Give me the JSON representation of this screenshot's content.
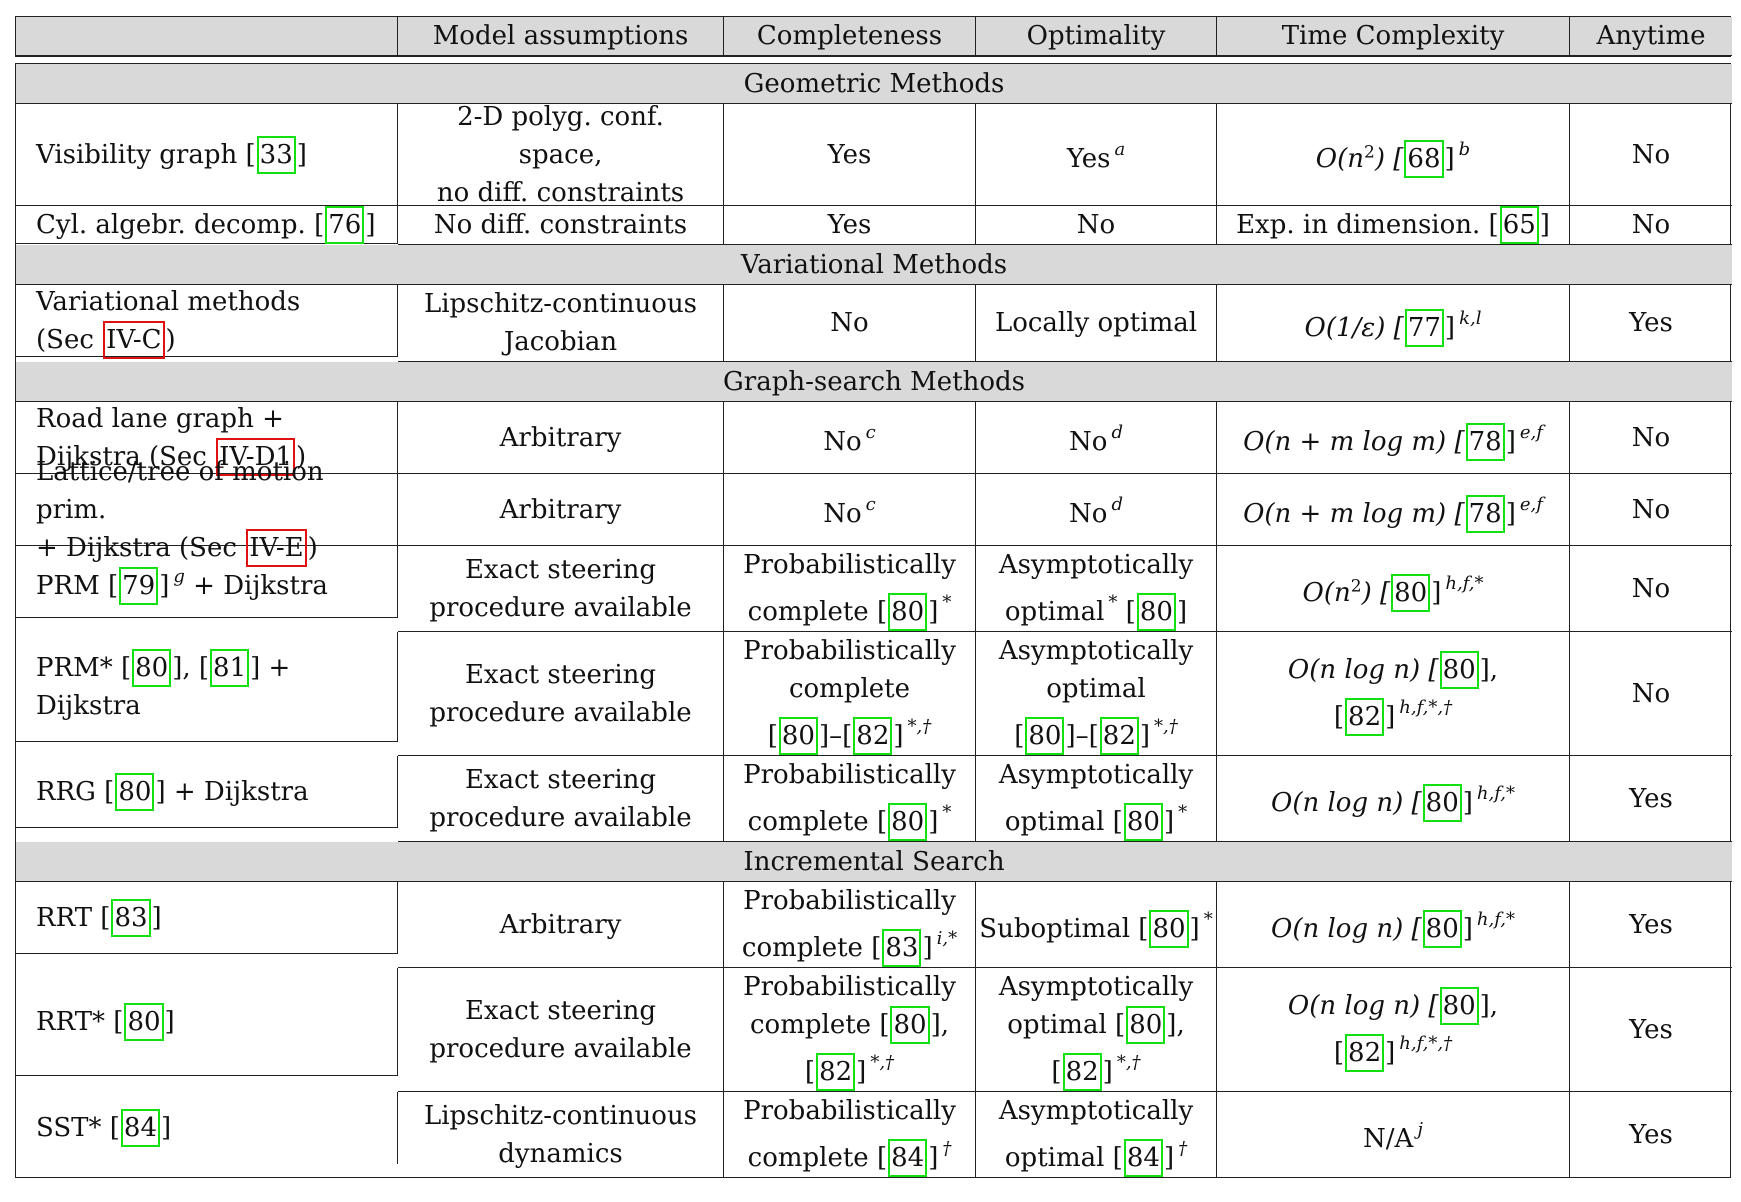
{
  "headers": [
    "",
    "Model assumptions",
    "Completeness",
    "Optimality",
    "Time Complexity",
    "Anytime"
  ],
  "sections": {
    "geometric": "Geometric Methods",
    "variational": "Variational Methods",
    "graph": "Graph-search Methods",
    "incremental": "Incremental Search"
  },
  "rows": {
    "vis": {
      "method": "Visibility graph [",
      "ref1": "33",
      "method_end": "]",
      "model": "2-D polyg. conf.\nspace,\nno diff. constraints",
      "completeness": "Yes",
      "optimality": "Yes",
      "optimality_sup": "a",
      "time_pre": "O(n",
      "time_exp": "2",
      "time_post": ") [",
      "time_ref": "68",
      "time_end": "]",
      "time_sup": "b",
      "anytime": "No"
    },
    "cyl": {
      "method": "Cyl. algebr. decomp. [",
      "ref1": "76",
      "method_end": "]",
      "model": "No diff. constraints",
      "completeness": "Yes",
      "optimality": "No",
      "time_pre": "Exp. in dimension. [",
      "time_ref": "65",
      "time_end": "]",
      "anytime": "No"
    },
    "var": {
      "method": "Variational methods",
      "method2": "(Sec ",
      "sec_ref": "IV-C",
      "method_end": ")",
      "model": "Lipschitz-continuous\nJacobian",
      "completeness": "No",
      "optimality": "Locally optimal",
      "time_pre": "O(1/ε) [",
      "time_ref": "77",
      "time_end": "]",
      "time_sup": "k,l",
      "anytime": "Yes"
    },
    "road": {
      "method": "Road lane graph +",
      "method2": "Dijkstra (Sec ",
      "sec_ref": "IV-D1",
      "method_end": ")",
      "model": "Arbitrary",
      "completeness": "No",
      "completeness_sup": "c",
      "optimality": "No",
      "optimality_sup": "d",
      "time_pre": "O(n + m log m) [",
      "time_ref": "78",
      "time_end": "]",
      "time_sup": "e,f",
      "anytime": "No"
    },
    "lattice": {
      "method": "Lattice/tree of motion prim.",
      "method2": "+ Dijkstra (Sec ",
      "sec_ref": "IV-E",
      "method_end": ")",
      "model": "Arbitrary",
      "completeness": "No",
      "completeness_sup": "c",
      "optimality": "No",
      "optimality_sup": "d",
      "time_pre": "O(n + m log m) [",
      "time_ref": "78",
      "time_end": "]",
      "time_sup": "e,f",
      "anytime": "No"
    },
    "prm": {
      "method": "PRM [",
      "ref1": "79",
      "method_mid": "]",
      "method_sup": "g",
      "method_end": " + Dijkstra",
      "model": "Exact steering\nprocedure available",
      "comp_line1": "Probabilistically",
      "comp_line2": "complete [",
      "comp_ref": "80",
      "comp_end": "]",
      "comp_sup": "*",
      "opt_line1": "Asymptotically",
      "opt_line2": "optimal",
      "opt_sup": "*",
      "opt_pre": " [",
      "opt_ref": "80",
      "opt_end": "]",
      "time_pre": "O(n",
      "time_exp": "2",
      "time_post": ") [",
      "time_ref": "80",
      "time_end": "]",
      "time_sup": "h,f,*",
      "anytime": "No"
    },
    "prmstar": {
      "method": "PRM* [",
      "ref1": "80",
      "method_mid": "], [",
      "ref2": "81",
      "method_end": "] + Dijkstra",
      "model": "Exact steering\nprocedure available",
      "comp_line1": "Probabilistically",
      "comp_line2": "complete",
      "comp_ref_a": "80",
      "comp_dash": "–",
      "comp_ref_b": "82",
      "comp_sup": "*,†",
      "opt_line1": "Asymptotically",
      "opt_line2": "optimal",
      "opt_ref_a": "80",
      "opt_dash": "–",
      "opt_ref_b": "82",
      "opt_sup": "*,†",
      "time_pre": "O(n log n) [",
      "time_ref": "80",
      "time_mid": "],",
      "time_ref2": "82",
      "time_sup": "h,f,*,†",
      "anytime": "No"
    },
    "rrg": {
      "method": "RRG [",
      "ref1": "80",
      "method_end": "] + Dijkstra",
      "model": "Exact steering\nprocedure available",
      "comp_line1": "Probabilistically",
      "comp_line2": "complete [",
      "comp_ref": "80",
      "comp_end": "]",
      "comp_sup": "*",
      "opt_line1": "Asymptotically",
      "opt_line2": "optimal [",
      "opt_ref": "80",
      "opt_end": "]",
      "opt_sup": "*",
      "time_pre": "O(n log n) [",
      "time_ref": "80",
      "time_end": "]",
      "time_sup": "h,f,*",
      "anytime": "Yes"
    },
    "rrt": {
      "method": "RRT [",
      "ref1": "83",
      "method_end": "]",
      "model": "Arbitrary",
      "comp_line1": "Probabilistically",
      "comp_line2": "complete [",
      "comp_ref": "83",
      "comp_end": "]",
      "comp_sup": "i,*",
      "opt_pre": "Suboptimal [",
      "opt_ref": "80",
      "opt_end": "]",
      "opt_sup": "*",
      "time_pre": "O(n log n) [",
      "time_ref": "80",
      "time_end": "]",
      "time_sup": "h,f,*",
      "anytime": "Yes"
    },
    "rrtstar": {
      "method": "RRT* [",
      "ref1": "80",
      "method_end": "]",
      "model": "Exact steering\nprocedure available",
      "comp_line1": "Probabilistically",
      "comp_line2": "complete [",
      "comp_ref": "80",
      "comp_mid": "],",
      "comp_ref2": "82",
      "comp_sup": "*,†",
      "opt_line1": "Asymptotically",
      "opt_line2": "optimal [",
      "opt_ref": "80",
      "opt_mid": "],",
      "opt_ref2": "82",
      "opt_sup": "*,†",
      "time_pre": "O(n log n) [",
      "time_ref": "80",
      "time_mid": "],",
      "time_ref2": "82",
      "time_sup": "h,f,*,†",
      "anytime": "Yes"
    },
    "sst": {
      "method": "SST* [",
      "ref1": "84",
      "method_end": "]",
      "model": "Lipschitz-continuous\ndynamics",
      "comp_line1": "Probabilistically",
      "comp_line2": "complete [",
      "comp_ref": "84",
      "comp_end": "]",
      "comp_sup": "†",
      "opt_line1": "Asymptotically",
      "opt_line2": "optimal [",
      "opt_ref": "84",
      "opt_end": "]",
      "opt_sup": "†",
      "time": "N/A",
      "time_sup": "j",
      "anytime": "Yes"
    }
  }
}
